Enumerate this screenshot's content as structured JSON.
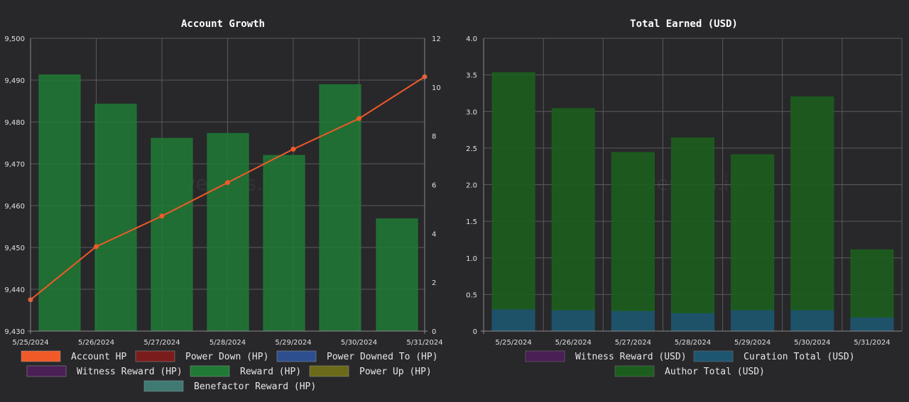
{
  "watermark": "hivestats.io",
  "chart_data": [
    {
      "type": "bar",
      "title": "Account Growth",
      "categories": [
        "5/25/2024",
        "5/26/2024",
        "5/27/2024",
        "5/28/2024",
        "5/29/2024",
        "5/30/2024",
        "5/31/2024"
      ],
      "ylim": [
        9430,
        9500
      ],
      "yticks": [
        "9,430",
        "9,440",
        "9,450",
        "9,460",
        "9,470",
        "9,480",
        "9,490",
        "9,500"
      ],
      "y2lim": [
        0,
        12
      ],
      "y2ticks": [
        "0",
        "2",
        "4",
        "6",
        "8",
        "10",
        "12"
      ],
      "grid": true,
      "legend_position": "bottom",
      "series": [
        {
          "name": "Account HP",
          "kind": "line",
          "axis": "left",
          "color": "#f05a28",
          "values": [
            9437.5,
            9450.2,
            9457.5,
            9465.5,
            9473.5,
            9480.8,
            9490.8
          ]
        },
        {
          "name": "Power Down (HP)",
          "kind": "bar",
          "axis": "right",
          "color": "#7a1c1c",
          "values": [
            0,
            0,
            0,
            0,
            0,
            0,
            0
          ]
        },
        {
          "name": "Power Downed To (HP)",
          "kind": "bar",
          "axis": "right",
          "color": "#2e4f8f",
          "values": [
            0,
            0,
            0,
            0,
            0,
            0,
            0
          ]
        },
        {
          "name": "Witness Reward (HP)",
          "kind": "bar",
          "axis": "right",
          "color": "#4a1f55",
          "values": [
            0,
            0,
            0,
            0,
            0,
            0,
            0
          ]
        },
        {
          "name": "Reward (HP)",
          "kind": "bar",
          "axis": "right",
          "color": "#1f7a35",
          "values": [
            10.5,
            9.3,
            7.9,
            8.1,
            7.2,
            10.1,
            4.6
          ]
        },
        {
          "name": "Power Up (HP)",
          "kind": "bar",
          "axis": "right",
          "color": "#6b6a18",
          "values": [
            0,
            0,
            0,
            0,
            0,
            0,
            0
          ]
        },
        {
          "name": "Benefactor Reward (HP)",
          "kind": "bar",
          "axis": "right",
          "color": "#3f7a72",
          "values": [
            0,
            0,
            0,
            0,
            0,
            0,
            0
          ]
        }
      ]
    },
    {
      "type": "bar",
      "stacked": true,
      "title": "Total Earned (USD)",
      "categories": [
        "5/25/2024",
        "5/26/2024",
        "5/27/2024",
        "5/28/2024",
        "5/29/2024",
        "5/30/2024",
        "5/31/2024"
      ],
      "ylim": [
        0,
        4
      ],
      "yticks": [
        "0",
        "0.5",
        "1.0",
        "1.5",
        "2.0",
        "2.5",
        "3.0",
        "3.5",
        "4.0"
      ],
      "grid": true,
      "legend_position": "bottom",
      "series": [
        {
          "name": "Witness Reward (USD)",
          "color": "#4a1f55",
          "values": [
            0,
            0,
            0,
            0,
            0,
            0,
            0
          ]
        },
        {
          "name": "Curation Total (USD)",
          "color": "#1d5670",
          "values": [
            0.3,
            0.29,
            0.28,
            0.25,
            0.29,
            0.29,
            0.19
          ]
        },
        {
          "name": "Author Total (USD)",
          "color": "#1c5e1e",
          "values": [
            3.23,
            2.75,
            2.16,
            2.39,
            2.12,
            2.91,
            0.92
          ]
        }
      ]
    }
  ]
}
